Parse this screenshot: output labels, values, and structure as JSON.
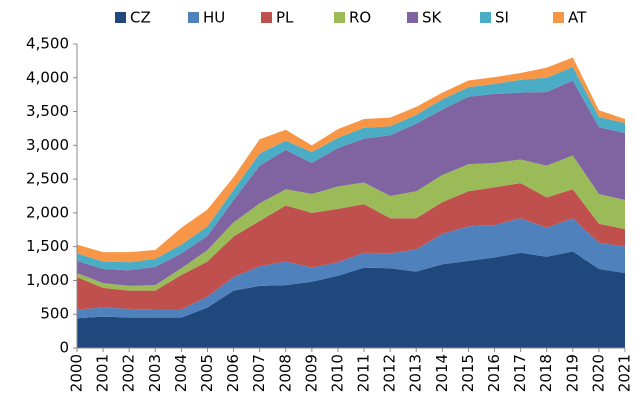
{
  "chart_data": {
    "type": "stacked-area",
    "categories": [
      "2000",
      "2001",
      "2002",
      "2003",
      "2004",
      "2005",
      "2006",
      "2007",
      "2008",
      "2009",
      "2010",
      "2011",
      "2012",
      "2013",
      "2014",
      "2015",
      "2016",
      "2017",
      "2018",
      "2019",
      "2020",
      "2021"
    ],
    "series": [
      {
        "name": "CZ",
        "color": "#1f497d",
        "values": [
          440,
          465,
          450,
          450,
          450,
          600,
          850,
          920,
          930,
          980,
          1070,
          1190,
          1180,
          1130,
          1240,
          1290,
          1340,
          1410,
          1350,
          1430,
          1170,
          1110
        ]
      },
      {
        "name": "HU",
        "color": "#4f81bd",
        "values": [
          130,
          135,
          130,
          120,
          120,
          160,
          200,
          290,
          350,
          210,
          200,
          220,
          220,
          330,
          450,
          510,
          480,
          510,
          430,
          490,
          390,
          390
        ]
      },
      {
        "name": "PL",
        "color": "#c0504d",
        "values": [
          480,
          290,
          270,
          280,
          510,
          520,
          600,
          670,
          830,
          810,
          790,
          720,
          520,
          460,
          470,
          520,
          560,
          520,
          450,
          430,
          280,
          260
        ]
      },
      {
        "name": "RO",
        "color": "#9bbb59",
        "values": [
          60,
          70,
          70,
          80,
          100,
          170,
          210,
          260,
          240,
          280,
          330,
          320,
          330,
          400,
          400,
          400,
          360,
          350,
          470,
          500,
          440,
          430
        ]
      },
      {
        "name": "SK",
        "color": "#8064a2",
        "values": [
          180,
          210,
          230,
          270,
          220,
          210,
          330,
          560,
          580,
          460,
          570,
          650,
          900,
          1000,
          970,
          1000,
          1020,
          990,
          1090,
          1110,
          990,
          990
        ]
      },
      {
        "name": "SI",
        "color": "#4bacc6",
        "values": [
          110,
          110,
          120,
          120,
          130,
          140,
          150,
          180,
          140,
          160,
          150,
          160,
          130,
          130,
          150,
          140,
          150,
          190,
          210,
          200,
          150,
          150
        ]
      },
      {
        "name": "AT",
        "color": "#f79646",
        "values": [
          130,
          140,
          150,
          130,
          250,
          250,
          190,
          210,
          160,
          100,
          130,
          130,
          130,
          120,
          100,
          100,
          100,
          100,
          150,
          140,
          100,
          60
        ]
      }
    ],
    "ylim": [
      0,
      4500
    ],
    "yticks": [
      0,
      500,
      {
        "value": 1000,
        "label": "1,000"
      },
      {
        "value": 1500,
        "label": "1,500"
      },
      {
        "value": 2000,
        "label": "2,000"
      },
      {
        "value": 2500,
        "label": "2,500"
      },
      {
        "value": 3000,
        "label": "3,000"
      },
      {
        "value": 3500,
        "label": "3,500"
      },
      {
        "value": 4000,
        "label": "4,000"
      },
      {
        "value": 4500,
        "label": "4,500"
      }
    ],
    "legend": "top"
  }
}
